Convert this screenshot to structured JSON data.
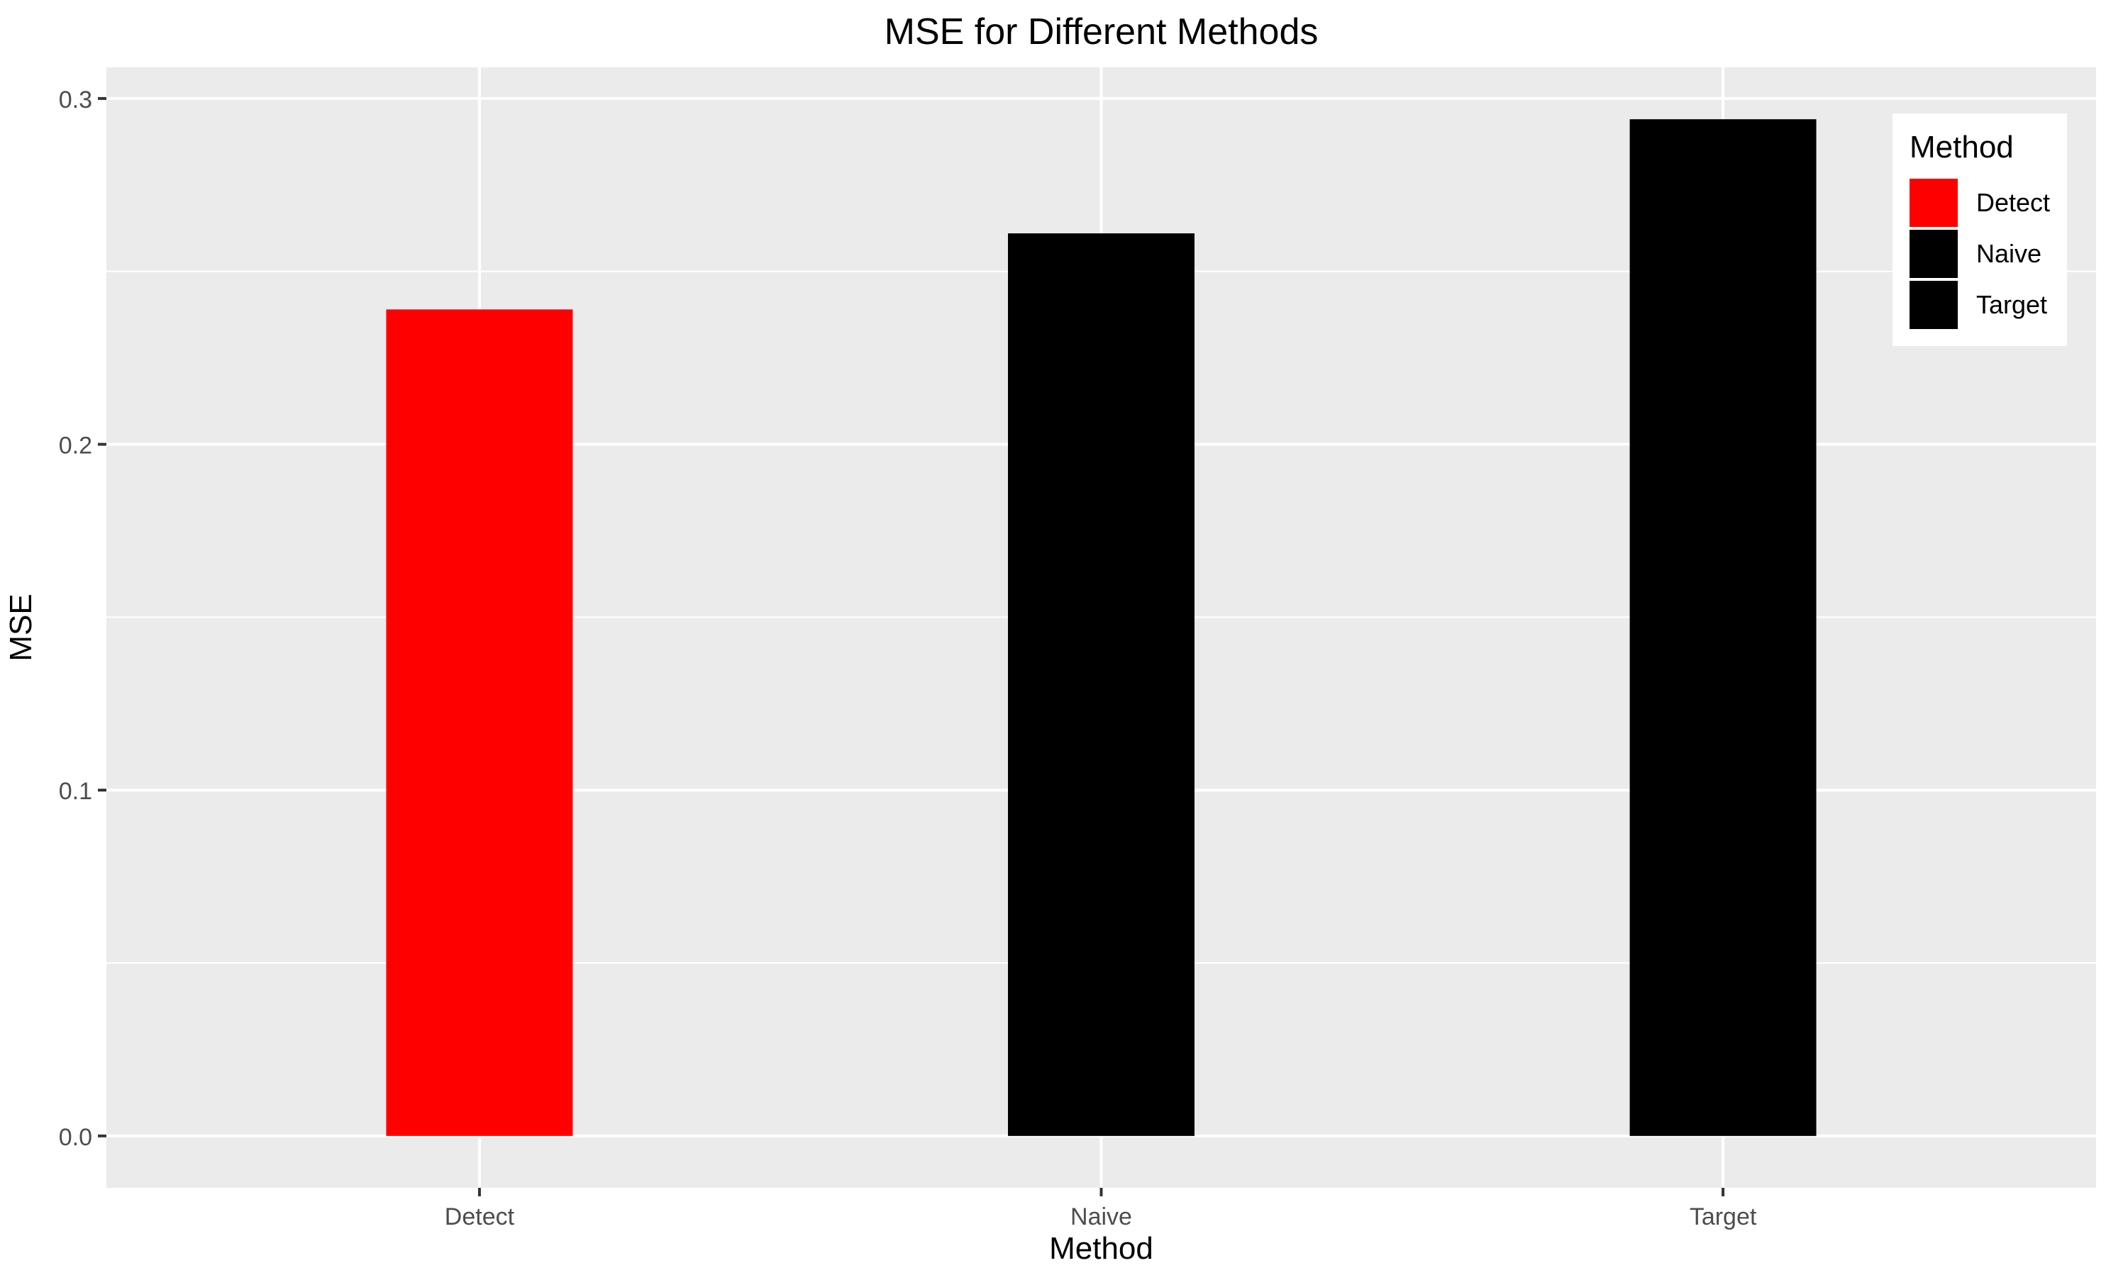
{
  "chart_data": {
    "type": "bar",
    "title": "MSE for Different Methods",
    "xlabel": "Method",
    "ylabel": "MSE",
    "categories": [
      "Detect",
      "Naive",
      "Target"
    ],
    "values": [
      0.239,
      0.261,
      0.294
    ],
    "ylim": [
      -0.015,
      0.309
    ],
    "yticks": [
      0.0,
      0.1,
      0.2,
      0.3
    ],
    "ytick_labels": [
      "0.0",
      "0.1",
      "0.2",
      "0.3"
    ],
    "grid": true,
    "legend": {
      "title": "Method",
      "position": "top-right",
      "entries": [
        {
          "label": "Detect",
          "color": "#ff0000"
        },
        {
          "label": "Naive",
          "color": "#000000"
        },
        {
          "label": "Target",
          "color": "#000000"
        }
      ]
    },
    "colors": {
      "Detect": "#ff0000",
      "Naive": "#000000",
      "Target": "#000000"
    },
    "panel_background": "#ebebeb",
    "gridline_color": "#ffffff"
  }
}
